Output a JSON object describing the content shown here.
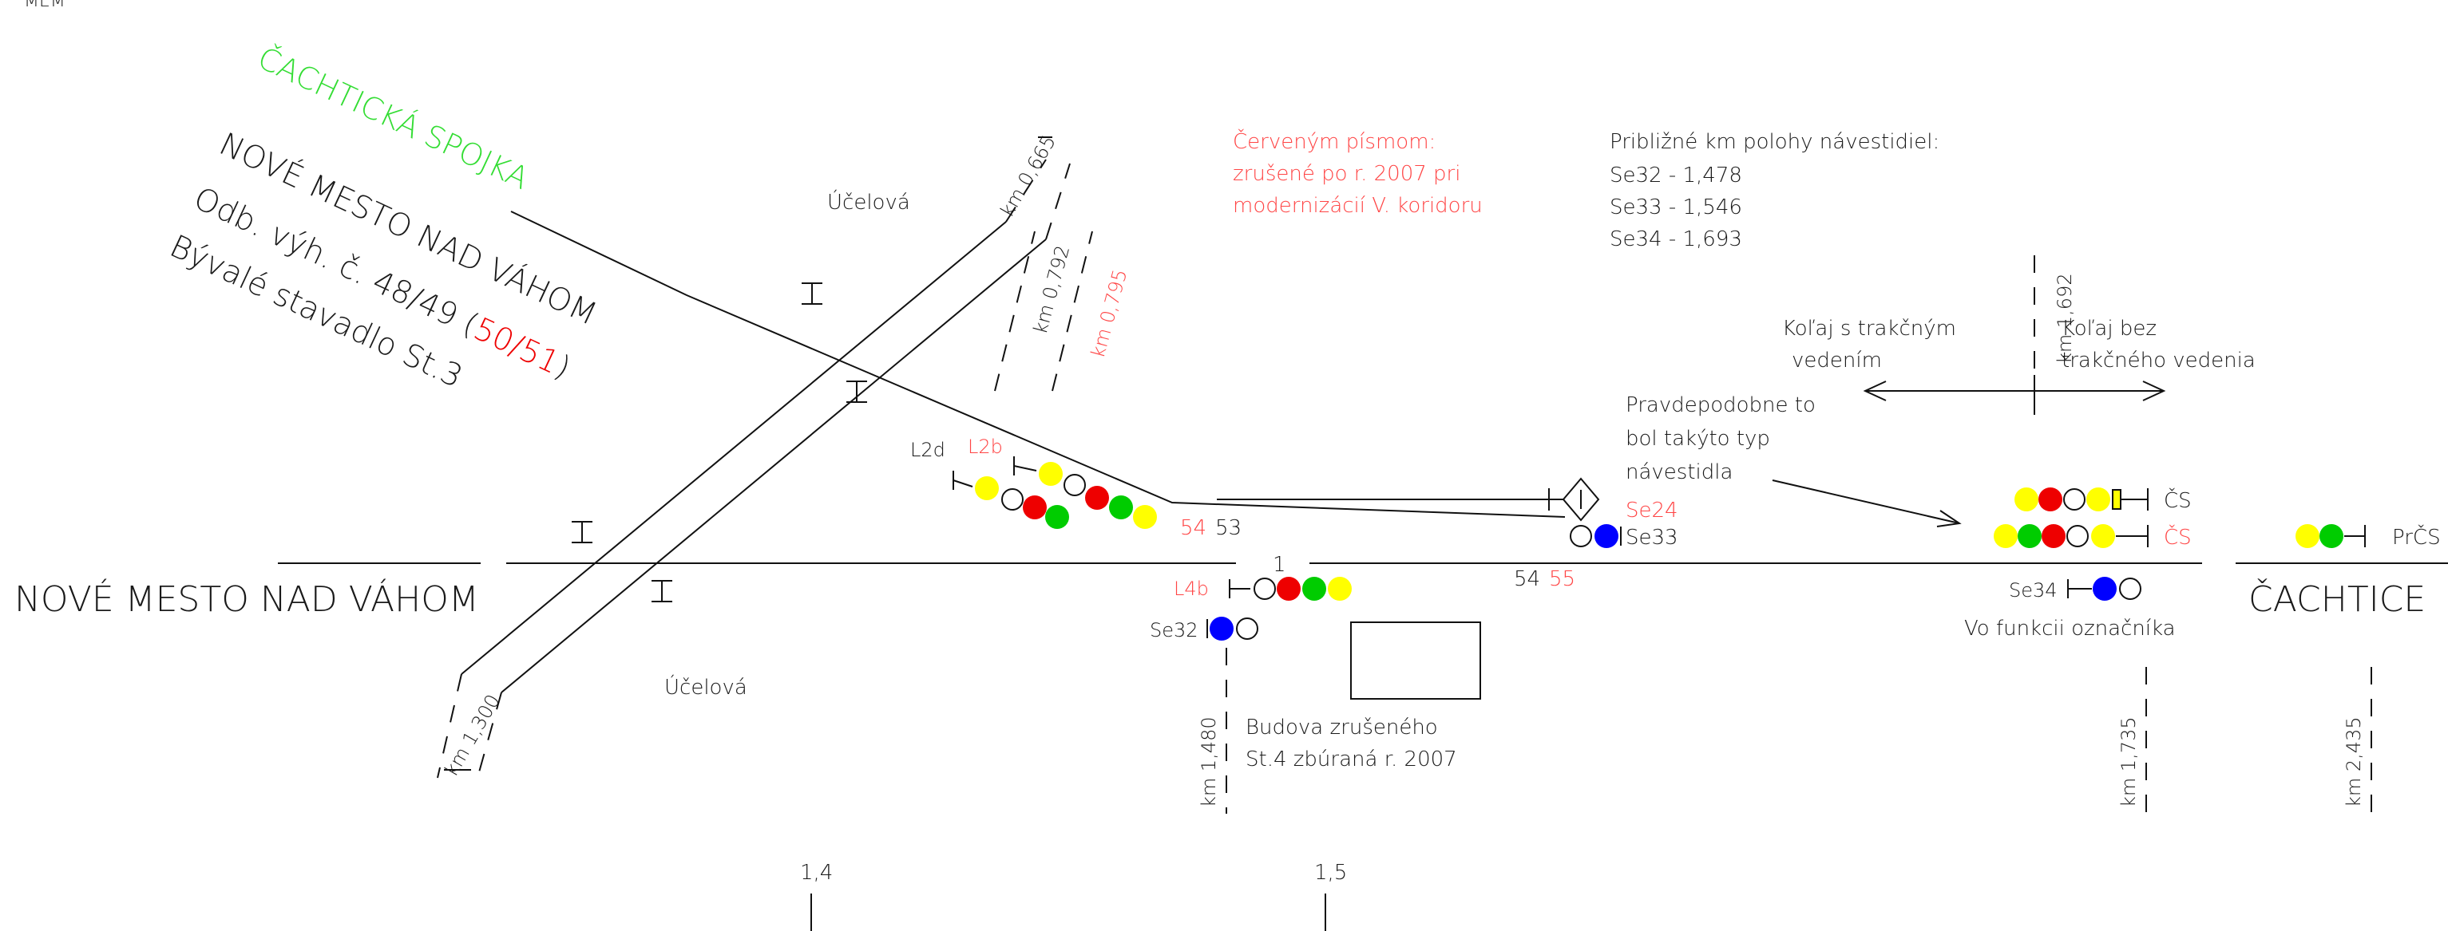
{
  "top_fragment": "MEM",
  "chachtice_link": "ČACHTICKÁ SPOJKA",
  "junction": {
    "name": "NOVÉ MESTO NAD VÁHOM",
    "odb_prefix": "Odb. výh. č. 48/49 (",
    "odb_red": "50/51",
    "odb_suffix": ")",
    "former": "Bývalé stavadlo St.3"
  },
  "stations": {
    "left": "NOVÉ MESTO NAD VÁHOM",
    "right": "ČACHTICE"
  },
  "roads": {
    "top": "Účelová",
    "bottom": "Účelová"
  },
  "km_marks": {
    "road_top": "km 0,665",
    "road_bottom": "km 1,300",
    "mid_black": "km 0,792",
    "mid_red": "km 0,795",
    "catenary": "km 1,692",
    "se32": "km 1,480",
    "se34": "km 1,735",
    "prcs": "km 2,435"
  },
  "red_note": [
    "Červeným písmom:",
    "zrušené po r. 2007 pri",
    "modernizácií V. koridoru"
  ],
  "km_positions": {
    "title": "Približné km polohy návestidiel:",
    "rows": [
      "Se32 - 1,478",
      "Se33 - 1,546",
      "Se34 - 1,693"
    ]
  },
  "catenary_left": [
    "Koľaj s trakčným",
    "vedením"
  ],
  "catenary_right": [
    "Koľaj bez",
    "trakčného vedenia"
  ],
  "probable_note": [
    "Pravdepodobne to",
    "bol takýto typ",
    "návestidla"
  ],
  "signals": {
    "l2d": "L2d",
    "l2b": "L2b",
    "l4b": "L4b",
    "se32": "Se32",
    "se24": "Se24",
    "se33": "Se33",
    "se34": "Se34",
    "cs1": "ČS",
    "cs2": "ČS",
    "prcs": "PrČS"
  },
  "switches": {
    "s54a": "54",
    "s53": "53",
    "s54b": "54",
    "s55": "55"
  },
  "track_number": "1",
  "se34_note": "Vo funkcii označníka",
  "building": [
    "Budova zrušeného",
    "St.4 zbúraná r. 2007"
  ],
  "scale": [
    "1,4",
    "1,5"
  ],
  "colors": {
    "red": "#ee0000",
    "green_text": "#33dd33",
    "yellow": "#ffff00",
    "green": "#00cc00",
    "blue": "#0000ff",
    "note_red": "#ff4444"
  }
}
